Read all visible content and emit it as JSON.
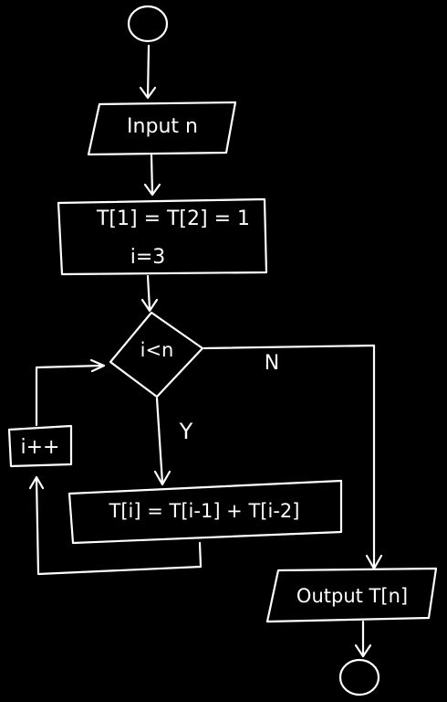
{
  "flowchart": {
    "input": "Input n",
    "init_line1": "T[1] = T[2] = 1",
    "init_line2": "i=3",
    "condition": "i<n",
    "yes_label": "Y",
    "no_label": "N",
    "compute": "T[i] = T[i-1] + T[i-2]",
    "increment": "i++",
    "output": "Output T[n]"
  },
  "colors": {
    "background": "#000000",
    "ink": "#ffffff"
  }
}
